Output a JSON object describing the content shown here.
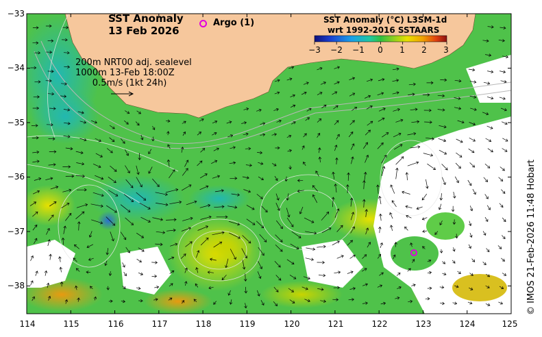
{
  "map": {
    "title_line1": "SST Anomaly",
    "title_line2": "13 Feb 2026",
    "argo_label": "Argo (1)",
    "info_lines": [
      "200m  NRT00 adj. sealevel",
      "1000m 13-Feb 18:00Z",
      "      0.5m/s (1kt 24h)"
    ],
    "colorbar_title_line1": "SST Anomaly (°C) L3SM-1d",
    "colorbar_title_line2": "wrt 1992-2016 SSTAARS",
    "colorbar_ticks": [
      "−3",
      "−2",
      "−1",
      "0",
      "1",
      "2",
      "3"
    ],
    "copyright": "© IMOS 21-Feb-2026 11:48 Hobart",
    "lat_labels": [
      "−33",
      "−34",
      "−35",
      "−36",
      "−37",
      "−38"
    ],
    "lon_labels": [
      "114",
      "115",
      "116",
      "117",
      "118",
      "119",
      "120",
      "121",
      "122",
      "123",
      "124",
      "125"
    ],
    "argo_float": {
      "lon": 122.75,
      "lat": -37.38
    },
    "land_color": "#f6c79c",
    "ocean_base_color": "#4fc24a"
  }
}
